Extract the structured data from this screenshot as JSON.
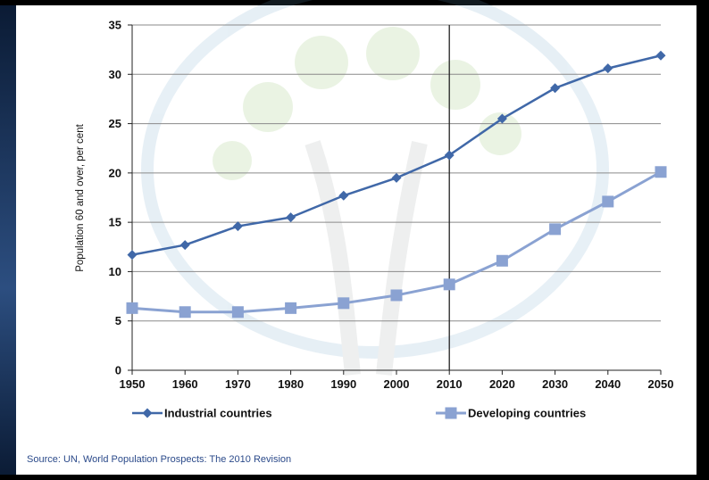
{
  "chart_data": {
    "type": "line",
    "x": [
      1950,
      1960,
      1970,
      1980,
      1990,
      2000,
      2010,
      2020,
      2030,
      2040,
      2050
    ],
    "ylabel": "Population 60 and over, per cent",
    "xlabel": "",
    "title": "",
    "ylim": [
      0,
      35
    ],
    "yticks": [
      0,
      5,
      10,
      15,
      20,
      25,
      30,
      35
    ],
    "grid": "horizontal",
    "vertical_marker": 2010,
    "legend_position": "bottom",
    "series": [
      {
        "name": "Industrial countries",
        "marker": "diamond",
        "color": "#4068a8",
        "values": [
          11.7,
          12.7,
          14.6,
          15.5,
          17.7,
          19.5,
          21.8,
          25.5,
          28.6,
          30.6,
          31.9
        ]
      },
      {
        "name": "Developing countries",
        "marker": "square",
        "color": "#8aa2d2",
        "values": [
          6.3,
          5.9,
          5.9,
          6.3,
          6.8,
          7.6,
          8.7,
          11.1,
          14.3,
          17.1,
          20.1
        ]
      }
    ]
  },
  "source": "Source: UN, World Population Prospects: The 2010 Revision"
}
